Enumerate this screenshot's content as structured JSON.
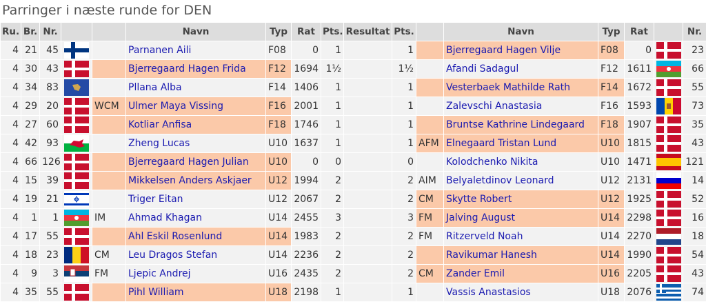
{
  "title": "Parringer i næste runde for DEN",
  "columns": [
    "Ru.",
    "Br.",
    "Nr.",
    null,
    null,
    "Navn",
    "Typ",
    "Rat",
    "Pts.",
    "Resultat",
    "Pts.",
    null,
    "Navn",
    "Typ",
    "Rat",
    null,
    "Nr."
  ],
  "rows": [
    [
      4,
      21,
      45,
      null,
      "Parnanen Aili",
      "F08",
      0,
      1,
      null,
      1,
      null,
      "Bjerregaard Hagen Vilje",
      "F08",
      0,
      23
    ],
    [
      4,
      30,
      43,
      null,
      "Bjerregaard Hagen Frida",
      "F12",
      1694,
      "1½",
      null,
      "1½",
      null,
      "Afandi Sadagul",
      "F12",
      1611,
      66
    ],
    [
      4,
      34,
      83,
      null,
      "Pllana Alba",
      "F14",
      1406,
      1,
      null,
      1,
      null,
      "Vesterbaek Mathilde Rath",
      "F14",
      1672,
      55
    ],
    [
      4,
      29,
      20,
      "WCM",
      "Ulmer Maya Vissing",
      "F16",
      2001,
      1,
      null,
      1,
      null,
      "Zalevschi Anastasia",
      "F16",
      1593,
      73
    ],
    [
      4,
      27,
      60,
      null,
      "Kotliar Anfisa",
      "F18",
      1746,
      1,
      null,
      1,
      null,
      "Bruntse Kathrine Lindegaard",
      "F18",
      1907,
      35
    ],
    [
      4,
      42,
      93,
      null,
      "Zheng Lucas",
      "U10",
      1637,
      1,
      null,
      1,
      "AFM",
      "Elnegaard Tristan Lund",
      "U10",
      1815,
      43
    ],
    [
      4,
      66,
      126,
      null,
      "Bjerregaard Hagen Julian",
      "U10",
      0,
      0,
      null,
      0,
      null,
      "Kolodchenko Nikita",
      "U10",
      1471,
      121
    ],
    [
      4,
      15,
      39,
      null,
      "Mikkelsen Anders Askjaer",
      "U12",
      1994,
      2,
      null,
      2,
      "AIM",
      "Belyaletdinov Leonard",
      "U12",
      2131,
      14
    ],
    [
      4,
      19,
      21,
      null,
      "Triger Eitan",
      "U12",
      2067,
      2,
      null,
      2,
      "CM",
      "Skytte Robert",
      "U12",
      1925,
      52
    ],
    [
      4,
      1,
      1,
      "IM",
      "Ahmad Khagan",
      "U14",
      2455,
      3,
      null,
      3,
      "FM",
      "Jalving August",
      "U14",
      2298,
      16
    ],
    [
      4,
      17,
      55,
      null,
      "Ahl Eskil Rosenlund",
      "U14",
      1983,
      2,
      null,
      2,
      "FM",
      "Ritzerveld Noah",
      "U14",
      2270,
      18
    ],
    [
      4,
      18,
      23,
      "CM",
      "Leu Dragos Stefan",
      "U14",
      2236,
      2,
      null,
      2,
      null,
      "Ravikumar Hanesh",
      "U14",
      1990,
      54
    ],
    [
      4,
      9,
      3,
      "FM",
      "Ljepic Andrej",
      "U16",
      2435,
      2,
      null,
      2,
      "CM",
      "Zander Emil",
      "U16",
      2205,
      43
    ],
    [
      4,
      35,
      55,
      null,
      "Pihl William",
      "U18",
      2198,
      1,
      null,
      1,
      null,
      "Vassis Anastasios",
      "U18",
      2076,
      74
    ]
  ]
}
